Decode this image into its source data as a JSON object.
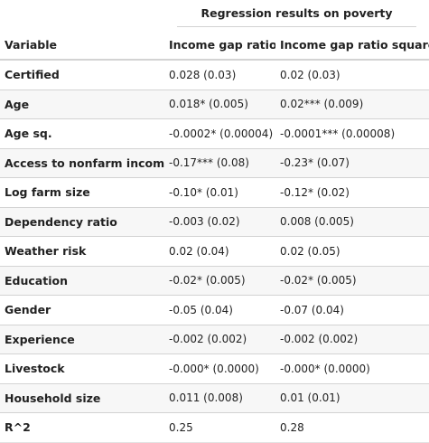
{
  "header": {
    "spanner": "Regression results on poverty",
    "columns": {
      "variable": "Variable",
      "col1": "Income gap ratio",
      "col2": "Income gap ratio square"
    }
  },
  "rows": [
    {
      "variable": "Certified",
      "col1": "0.028 (0.03)",
      "col2": "0.02 (0.03)"
    },
    {
      "variable": "Age",
      "col1": "0.018* (0.005)",
      "col2": "0.02*** (0.009)"
    },
    {
      "variable": "Age sq.",
      "col1": "-0.0002* (0.00004)",
      "col2": "-0.0001*** (0.00008)"
    },
    {
      "variable": "Access to nonfarm income",
      "col1": "-0.17*** (0.08)",
      "col2": "-0.23* (0.07)"
    },
    {
      "variable": "Log farm size",
      "col1": "-0.10* (0.01)",
      "col2": "-0.12* (0.02)"
    },
    {
      "variable": "Dependency ratio",
      "col1": "-0.003 (0.02)",
      "col2": "0.008 (0.005)"
    },
    {
      "variable": "Weather risk",
      "col1": "0.02 (0.04)",
      "col2": "0.02 (0.05)"
    },
    {
      "variable": "Education",
      "col1": "-0.02* (0.005)",
      "col2": "-0.02* (0.005)"
    },
    {
      "variable": "Gender",
      "col1": "-0.05 (0.04)",
      "col2": "-0.07 (0.04)"
    },
    {
      "variable": "Experience",
      "col1": "-0.002 (0.002)",
      "col2": "-0.002 (0.002)"
    },
    {
      "variable": "Livestock",
      "col1": "-0.000* (0.0000)",
      "col2": "-0.000* (0.0000)"
    },
    {
      "variable": "Household size",
      "col1": "0.011 (0.008)",
      "col2": "0.01 (0.01)"
    },
    {
      "variable": "R^2",
      "col1": "0.25",
      "col2": "0.28"
    }
  ],
  "colors": {
    "border": "#d3d3d3",
    "stripe": "#f7f7f7",
    "text": "#222222"
  }
}
